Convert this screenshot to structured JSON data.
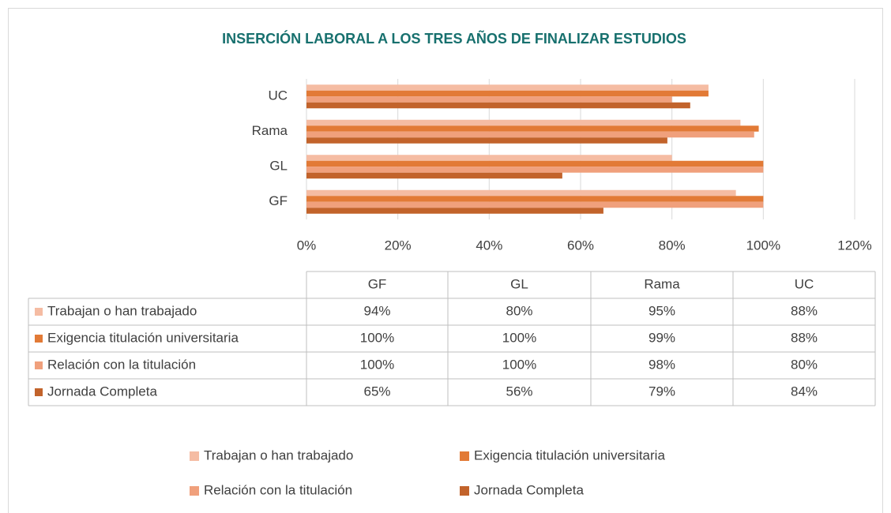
{
  "chart_data": {
    "type": "bar",
    "orientation": "horizontal",
    "title": "INSERCIÓN LABORAL A LOS TRES AÑOS DE FINALIZAR ESTUDIOS",
    "categories": [
      "GF",
      "GL",
      "Rama",
      "UC"
    ],
    "series": [
      {
        "name": "Trabajan o han trabajado",
        "color": "#F5BCA3",
        "values": [
          94,
          80,
          95,
          88
        ],
        "value_labels": [
          "94%",
          "80%",
          "95%",
          "88%"
        ]
      },
      {
        "name": "Exigencia titulación universitaria",
        "color": "#E27A36",
        "values": [
          100,
          100,
          99,
          88
        ],
        "value_labels": [
          "100%",
          "100%",
          "99%",
          "88%"
        ]
      },
      {
        "name": "Relación con la titulación",
        "color": "#F0A07C",
        "values": [
          100,
          100,
          98,
          80
        ],
        "value_labels": [
          "100%",
          "100%",
          "98%",
          "80%"
        ]
      },
      {
        "name": "Jornada Completa",
        "color": "#C2632B",
        "values": [
          65,
          56,
          79,
          84
        ],
        "value_labels": [
          "65%",
          "56%",
          "79%",
          "84%"
        ]
      }
    ],
    "xlim": [
      0,
      120
    ],
    "xticks": [
      {
        "value": 0,
        "label": "0%"
      },
      {
        "value": 20,
        "label": "20%"
      },
      {
        "value": 40,
        "label": "40%"
      },
      {
        "value": 60,
        "label": "60%"
      },
      {
        "value": 80,
        "label": "80%"
      },
      {
        "value": 100,
        "label": "100%"
      },
      {
        "value": 120,
        "label": "120%"
      }
    ],
    "grid": true,
    "legend": "bottom",
    "data_table": true
  }
}
